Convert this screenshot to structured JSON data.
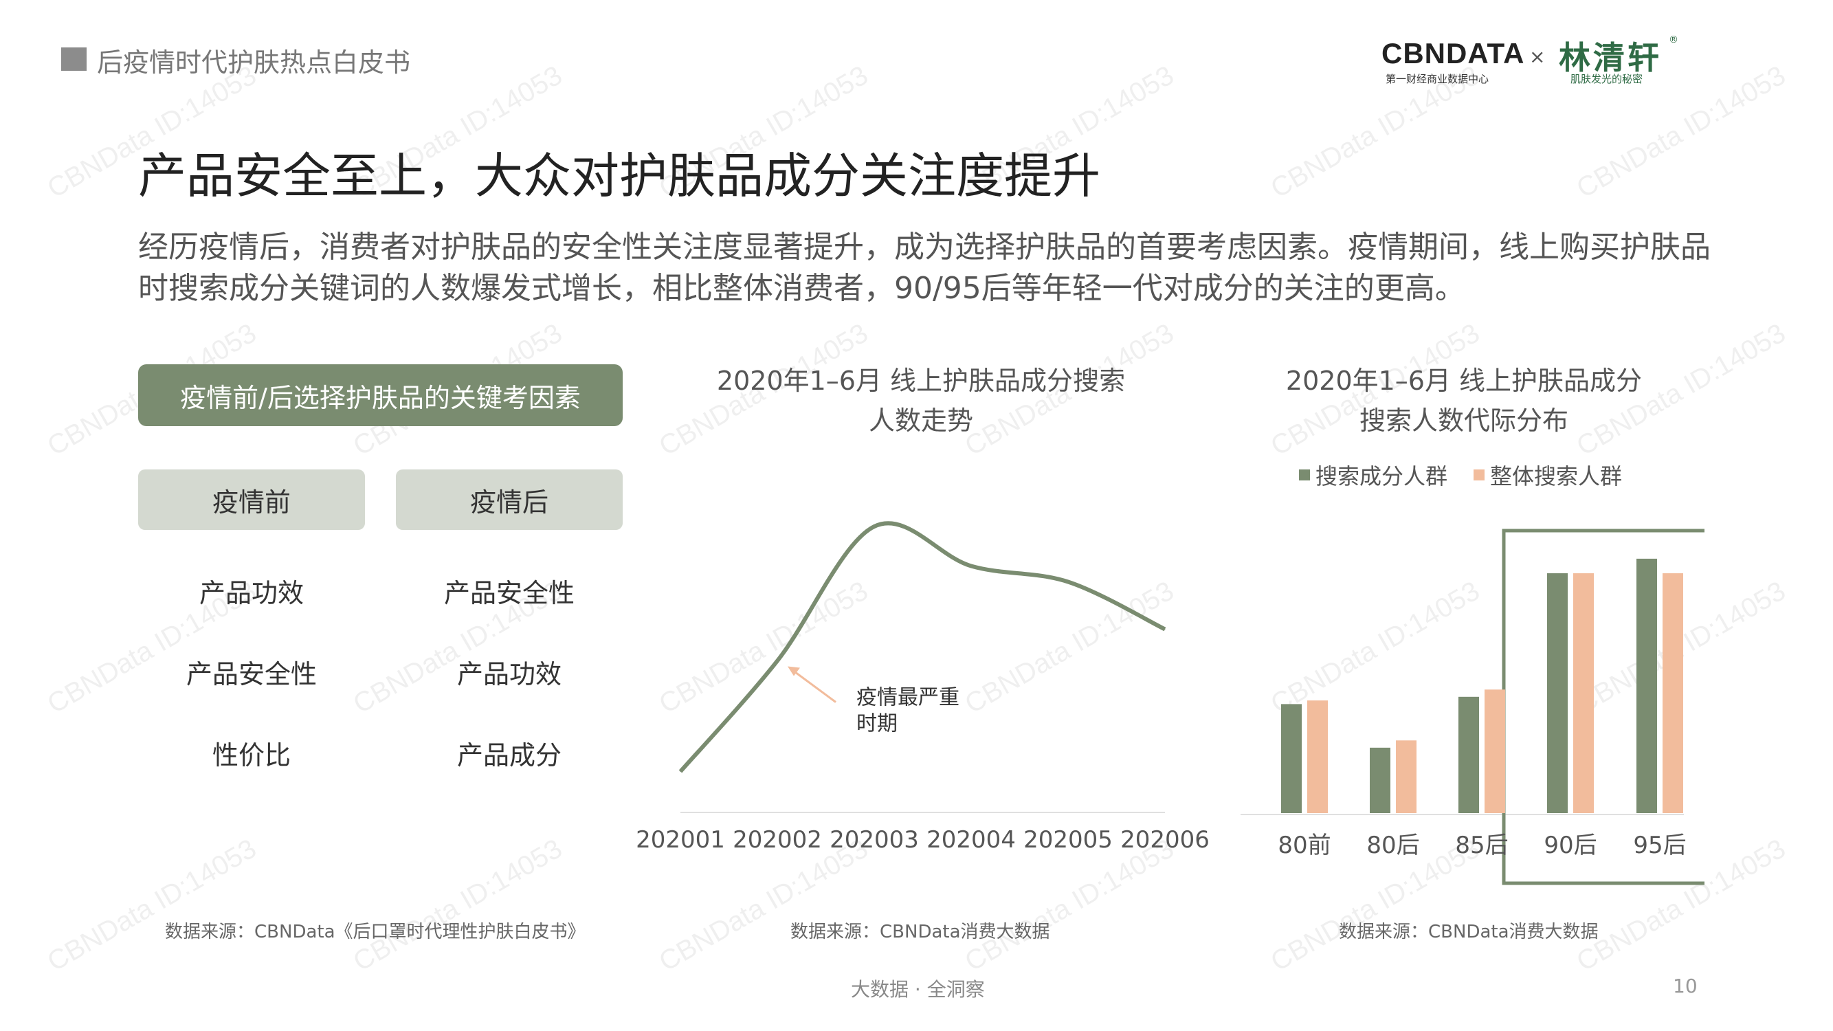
{
  "header": {
    "report_title": "后疫情时代护肤热点白皮书"
  },
  "logos": {
    "cbndata": "CBNDATA",
    "cbndata_sub": "第一财经商业数据中心",
    "times": "×",
    "partner": "林清轩",
    "partner_sub": "肌肤发光的秘密",
    "registered": "®"
  },
  "slide": {
    "title": "产品安全至上，大众对护肤品成分关注度提升",
    "paragraph": "经历疫情后，消费者对护肤品的安全性关注度显著提升，成为选择护肤品的首要考虑因素。疫情期间，线上购买护肤品时搜索成分关键词的人数爆发式增长，相比整体消费者，90/95后等年轻一代对成分的关注的更高。"
  },
  "factors": {
    "heading": "疫情前/后选择护肤品的关键考因素",
    "before_label": "疫情前",
    "after_label": "疫情后",
    "before": [
      "产品功效",
      "产品安全性",
      "性价比"
    ],
    "after": [
      "产品安全性",
      "产品功效",
      "产品成分"
    ],
    "source": "数据来源：CBNData《后口罩时代理性护肤白皮书》"
  },
  "chart_data": [
    {
      "type": "line",
      "title": "2020年1–6月 线上护肤品成分搜索人数走势",
      "title_lines": [
        "2020年1–6月 线上护肤品成分搜索",
        "人数走势"
      ],
      "x": [
        "202001",
        "202002",
        "202003",
        "202004",
        "202005",
        "202006"
      ],
      "values": [
        10,
        38,
        72,
        62,
        58,
        46
      ],
      "ylim": [
        0,
        80
      ],
      "y_axis_shown": false,
      "color": "#7a8c70",
      "annotation": {
        "text_lines": [
          "疫情最严重",
          "时期"
        ],
        "x": "202002"
      },
      "source": "数据来源：CBNData消费大数据"
    },
    {
      "type": "bar",
      "title": "2020年1–6月 线上护肤品成分搜索人数代际分布",
      "title_lines": [
        "2020年1–6月 线上护肤品成分",
        "搜索人数代际分布"
      ],
      "categories": [
        "80前",
        "80后",
        "85后",
        "90后",
        "95后"
      ],
      "series": [
        {
          "name": "搜索成分人群",
          "values": [
            15,
            9,
            16,
            33,
            35
          ],
          "color": "#7a8c70"
        },
        {
          "name": "整体搜索人群",
          "values": [
            15.5,
            10,
            17,
            33,
            33
          ],
          "color": "#f2bc9c"
        }
      ],
      "ylim": [
        0,
        40
      ],
      "y_axis_shown": false,
      "highlight": [
        "90后",
        "95后"
      ],
      "legend_position": "top",
      "source": "数据来源：CBNData消费大数据"
    }
  ],
  "footer": {
    "tagline": "大数据 · 全洞察",
    "page_number": "10"
  },
  "watermark": "CBNData ID:14053"
}
